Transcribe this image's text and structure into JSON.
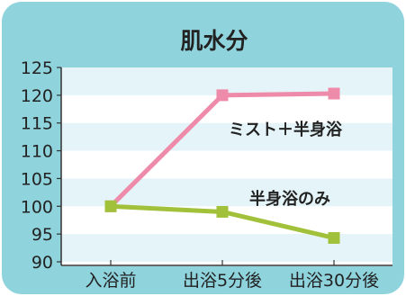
{
  "chart_data": {
    "type": "line",
    "title": "肌水分",
    "categories": [
      "入浴前",
      "出浴5分後",
      "出浴30分後"
    ],
    "yticks": [
      "125",
      "120",
      "115",
      "110",
      "105",
      "100",
      "95",
      "90"
    ],
    "ylim": [
      90,
      125
    ],
    "grid": "horizontal stripes",
    "series": [
      {
        "name": "ミスト＋半身浴",
        "values": [
          100,
          120,
          120.3
        ],
        "color": "#ee8aaa"
      },
      {
        "name": "半身浴のみ",
        "values": [
          100,
          99,
          94.3
        ],
        "color": "#a2c13a"
      }
    ]
  },
  "colors": {
    "card_background": "#8fd3dd",
    "plot_background": "#ffffff",
    "stripe": "#e5f4f8",
    "axis": "#333333"
  }
}
